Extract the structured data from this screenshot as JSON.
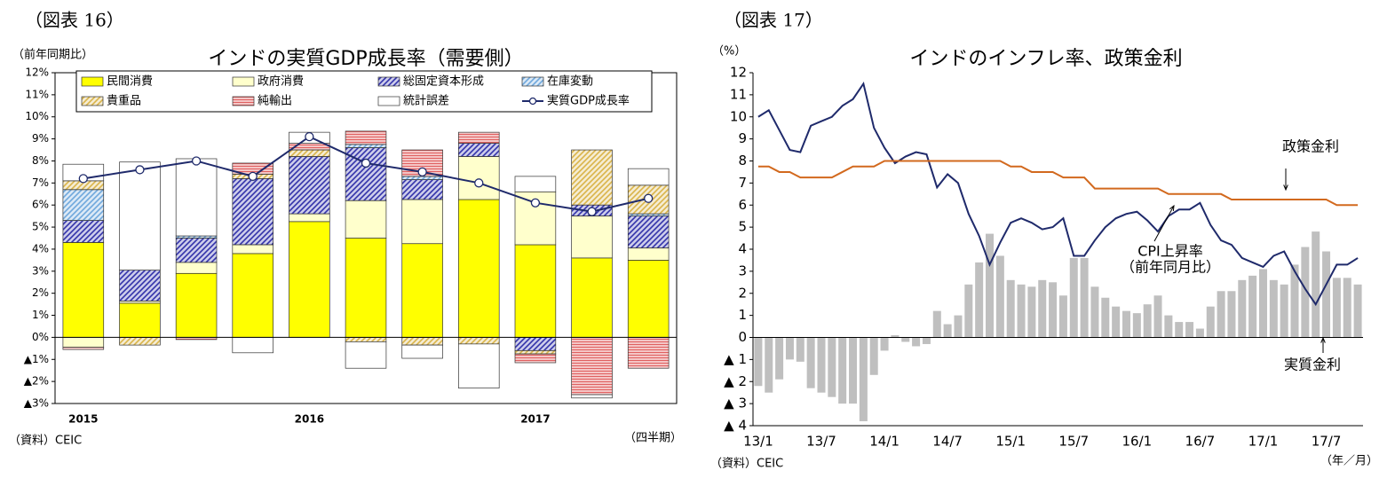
{
  "chart_data": [
    {
      "type": "bar",
      "stacked": true,
      "figure_label": "（図表 16）",
      "title": "インドの実質GDP成長率（需要側）",
      "y_unit": "（前年同期比）",
      "x_unit": "（四半期）",
      "source": "（資料）CEIC",
      "categories": [
        "2015",
        null,
        null,
        null,
        "2016",
        null,
        null,
        null,
        "2017",
        null,
        null
      ],
      "series": [
        {
          "name": "民間消費",
          "type": "bar",
          "color": "#ffff00",
          "values": [
            4.3,
            1.55,
            2.9,
            3.8,
            5.25,
            4.5,
            4.25,
            6.25,
            4.2,
            3.6,
            3.5
          ]
        },
        {
          "name": "政府消費",
          "type": "bar",
          "color": "#ffffcc",
          "values": [
            -0.45,
            0.1,
            0.5,
            0.4,
            0.35,
            1.7,
            2.0,
            1.95,
            2.4,
            1.9,
            0.55
          ]
        },
        {
          "name": "総固定資本形成",
          "type": "bar",
          "color": "#3333aa",
          "pattern": "diagonal",
          "values": [
            1.0,
            1.4,
            1.1,
            3.0,
            2.6,
            2.4,
            0.9,
            0.6,
            -0.6,
            0.5,
            1.45
          ]
        },
        {
          "name": "在庫変動",
          "type": "bar",
          "color": "#6fa8dc",
          "pattern": "diagonal",
          "values": [
            1.4,
            0,
            0.1,
            0,
            0,
            0.15,
            0.15,
            0,
            0,
            0,
            0.1
          ]
        },
        {
          "name": "貴重品",
          "type": "bar",
          "color": "#d9b44a",
          "pattern": "diagonal",
          "values": [
            0.4,
            -0.35,
            0,
            0.2,
            0.3,
            -0.2,
            -0.35,
            -0.3,
            -0.15,
            2.5,
            1.3
          ]
        },
        {
          "name": "純輸出",
          "type": "bar",
          "color": "#e06060",
          "pattern": "horizontal",
          "values": [
            -0.1,
            0,
            -0.1,
            0.5,
            0.3,
            0.6,
            1.2,
            0.5,
            -0.4,
            -2.6,
            -1.4
          ]
        },
        {
          "name": "統計誤差",
          "type": "bar",
          "color": "#ffffff",
          "values": [
            0.75,
            4.9,
            3.5,
            -0.7,
            0.5,
            -1.2,
            -0.6,
            -2.0,
            0.7,
            -0.15,
            0.75
          ]
        },
        {
          "name": "実質GDP成長率",
          "type": "line",
          "color": "#1f2a6b",
          "marker": true,
          "values": [
            7.2,
            7.6,
            8.0,
            7.3,
            9.1,
            7.9,
            7.5,
            7.0,
            6.1,
            5.7,
            6.3
          ]
        }
      ],
      "ylim": [
        -3,
        12
      ],
      "yticks": [
        {
          "value": 12,
          "label": "12%"
        },
        {
          "value": 11,
          "label": "11%"
        },
        {
          "value": 10,
          "label": "10%"
        },
        {
          "value": 9,
          "label": "9%"
        },
        {
          "value": 8,
          "label": "8%"
        },
        {
          "value": 7,
          "label": "7%"
        },
        {
          "value": 6,
          "label": "6%"
        },
        {
          "value": 5,
          "label": "5%"
        },
        {
          "value": 4,
          "label": "4%"
        },
        {
          "value": 3,
          "label": "3%"
        },
        {
          "value": 2,
          "label": "2%"
        },
        {
          "value": 1,
          "label": "1%"
        },
        {
          "value": 0,
          "label": "0%"
        },
        {
          "value": -1,
          "label": "▲1%"
        },
        {
          "value": -2,
          "label": "▲2%"
        },
        {
          "value": -3,
          "label": "▲3%"
        }
      ],
      "legend": "top"
    },
    {
      "type": "line",
      "figure_label": "（図表 17）",
      "title": "インドのインフレ率、政策金利",
      "y_unit": "（%）",
      "x_unit": "（年／月）",
      "source": "（資料）CEIC",
      "annotations": [
        "（前年同月比）"
      ],
      "categories": [
        "13/1",
        null,
        null,
        null,
        null,
        null,
        "13/7",
        null,
        null,
        null,
        null,
        null,
        "14/1",
        null,
        null,
        null,
        null,
        null,
        "14/7",
        null,
        null,
        null,
        null,
        null,
        "15/1",
        null,
        null,
        null,
        null,
        null,
        "15/7",
        null,
        null,
        null,
        null,
        null,
        "16/1",
        null,
        null,
        null,
        null,
        null,
        "16/7",
        null,
        null,
        null,
        null,
        null,
        "17/1",
        null,
        null,
        null,
        null,
        null,
        "17/7",
        null,
        null,
        null
      ],
      "series": [
        {
          "name": "実質金利",
          "type": "bar",
          "color": "#bfbfbf",
          "values": [
            -2.2,
            -2.5,
            -1.9,
            -1.0,
            -1.1,
            -2.3,
            -2.5,
            -2.7,
            -3.0,
            -3.0,
            -3.8,
            -1.7,
            -0.6,
            0.1,
            -0.2,
            -0.4,
            -0.3,
            1.2,
            0.6,
            1.0,
            2.4,
            3.4,
            4.7,
            3.7,
            2.6,
            2.4,
            2.3,
            2.6,
            2.5,
            1.9,
            3.6,
            3.6,
            2.3,
            1.8,
            1.4,
            1.2,
            1.1,
            1.5,
            1.9,
            1.0,
            0.7,
            0.7,
            0.4,
            1.4,
            2.1,
            2.1,
            2.6,
            2.8,
            3.1,
            2.6,
            2.4,
            3.3,
            4.1,
            4.8,
            3.9,
            2.7,
            2.7,
            2.4
          ]
        },
        {
          "name": "CPI上昇率",
          "type": "line",
          "color": "#1f2a6b",
          "values": [
            10.0,
            10.3,
            9.4,
            8.5,
            8.4,
            9.6,
            9.8,
            10.0,
            10.5,
            10.8,
            11.5,
            9.5,
            8.6,
            7.9,
            8.2,
            8.4,
            8.3,
            6.8,
            7.4,
            7.0,
            5.6,
            4.6,
            3.3,
            4.3,
            5.2,
            5.4,
            5.2,
            4.9,
            5.0,
            5.4,
            3.7,
            3.7,
            4.4,
            5.0,
            5.4,
            5.6,
            5.7,
            5.3,
            4.8,
            5.5,
            5.8,
            5.8,
            6.1,
            5.1,
            4.4,
            4.2,
            3.6,
            3.4,
            3.2,
            3.7,
            3.9,
            3.0,
            2.2,
            1.5,
            2.4,
            3.3,
            3.3,
            3.6
          ]
        },
        {
          "name": "政策金利",
          "type": "line",
          "color": "#d2691e",
          "values": [
            7.75,
            7.75,
            7.5,
            7.5,
            7.25,
            7.25,
            7.25,
            7.25,
            7.5,
            7.75,
            7.75,
            7.75,
            8.0,
            8.0,
            8.0,
            8.0,
            8.0,
            8.0,
            8.0,
            8.0,
            8.0,
            8.0,
            8.0,
            8.0,
            7.75,
            7.75,
            7.5,
            7.5,
            7.5,
            7.25,
            7.25,
            7.25,
            6.75,
            6.75,
            6.75,
            6.75,
            6.75,
            6.75,
            6.75,
            6.5,
            6.5,
            6.5,
            6.5,
            6.5,
            6.5,
            6.25,
            6.25,
            6.25,
            6.25,
            6.25,
            6.25,
            6.25,
            6.25,
            6.25,
            6.25,
            6.0,
            6.0,
            6.0
          ]
        }
      ],
      "ylim": [
        -4,
        12
      ],
      "yticks": [
        12,
        11,
        10,
        9,
        8,
        7,
        6,
        5,
        4,
        3,
        2,
        1,
        0,
        {
          "value": -1,
          "label": "▲ 1"
        },
        {
          "value": -2,
          "label": "▲ 2"
        },
        {
          "value": -3,
          "label": "▲ 3"
        },
        {
          "value": -4,
          "label": "▲ 4"
        }
      ]
    }
  ]
}
